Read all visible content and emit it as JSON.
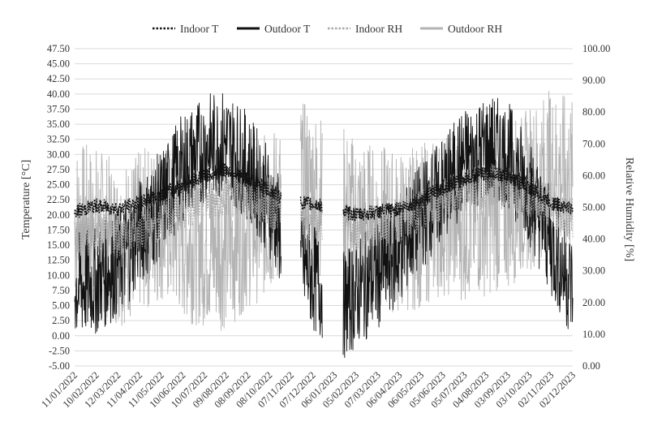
{
  "chart_data": {
    "type": "line",
    "title": "",
    "xlabel": "",
    "ylabel": "Temperature [°C]",
    "y2label": "Relative Humidity [%]",
    "ylim": [
      -5,
      47.5
    ],
    "y2lim": [
      0,
      100
    ],
    "xlim": [
      "2022-01-11",
      "2023-12-02"
    ],
    "grid": "horizontal",
    "legend": "top-center",
    "x_tick_labels": [
      "11/01/2022",
      "10/02/2022",
      "12/03/2022",
      "11/04/2022",
      "11/05/2022",
      "10/06/2022",
      "10/07/2022",
      "09/08/2022",
      "08/09/2022",
      "08/10/2022",
      "07/11/2022",
      "07/12/2022",
      "06/01/2023",
      "05/02/2023",
      "07/03/2023",
      "06/04/2023",
      "06/05/2023",
      "05/06/2023",
      "05/07/2023",
      "04/08/2023",
      "03/09/2023",
      "03/10/2023",
      "02/11/2023",
      "02/12/2023"
    ],
    "y_tick_labels": [
      "-5.00",
      "-2.50",
      "0.00",
      "2.50",
      "5.00",
      "7.50",
      "10.00",
      "12.50",
      "15.00",
      "17.50",
      "20.00",
      "22.50",
      "25.00",
      "27.50",
      "30.00",
      "32.50",
      "35.00",
      "37.50",
      "40.00",
      "42.50",
      "45.00",
      "47.50"
    ],
    "y2_tick_labels": [
      "0.00",
      "10.00",
      "20.00",
      "30.00",
      "40.00",
      "50.00",
      "60.00",
      "70.00",
      "80.00",
      "90.00",
      "100.00"
    ],
    "gaps": [
      [
        "2022-10-24",
        "2022-11-20"
      ],
      [
        "2022-12-20",
        "2023-01-18"
      ]
    ],
    "series": [
      {
        "name": "Indoor T",
        "axis": "left",
        "color": "#111111",
        "dash": "dotted",
        "x": [
          "2022-01-11",
          "2022-02-10",
          "2022-03-12",
          "2022-04-11",
          "2022-05-11",
          "2022-06-10",
          "2022-07-10",
          "2022-08-09",
          "2022-09-08",
          "2022-10-08",
          "2022-10-23",
          "2022-11-21",
          "2022-12-19",
          "2023-01-19",
          "2023-02-05",
          "2023-03-07",
          "2023-04-06",
          "2023-05-06",
          "2023-06-05",
          "2023-07-05",
          "2023-08-04",
          "2023-09-03",
          "2023-10-03",
          "2023-11-02",
          "2023-12-02"
        ],
        "values": [
          20.5,
          21.5,
          21.0,
          22.0,
          23.5,
          25.0,
          26.5,
          27.5,
          26.0,
          24.0,
          23.0,
          22.0,
          21.5,
          20.5,
          20.0,
          20.5,
          21.0,
          22.5,
          24.5,
          26.0,
          27.0,
          26.5,
          24.5,
          22.0,
          21.0
        ]
      },
      {
        "name": "Outdoor T",
        "axis": "left",
        "color": "#111111",
        "dash": "solid",
        "x": [
          "2022-01-11",
          "2022-02-10",
          "2022-03-12",
          "2022-04-11",
          "2022-05-11",
          "2022-06-10",
          "2022-07-10",
          "2022-08-09",
          "2022-09-08",
          "2022-10-08",
          "2022-10-23",
          "2022-11-21",
          "2022-12-19",
          "2023-01-19",
          "2023-02-05",
          "2023-03-07",
          "2023-04-06",
          "2023-05-06",
          "2023-06-05",
          "2023-07-05",
          "2023-08-04",
          "2023-09-03",
          "2023-10-03",
          "2023-11-02",
          "2023-12-02"
        ],
        "values": [
          8.0,
          9.0,
          12.0,
          17.0,
          22.0,
          28.0,
          31.0,
          32.0,
          28.0,
          22.0,
          17.0,
          12.0,
          8.0,
          5.0,
          7.0,
          10.0,
          14.0,
          20.0,
          24.0,
          29.0,
          31.0,
          30.0,
          24.0,
          15.0,
          8.0
        ]
      },
      {
        "name": "Indoor RH",
        "axis": "right",
        "color": "#a6a6a6",
        "dash": "dotted",
        "x": [
          "2022-01-11",
          "2022-02-10",
          "2022-03-12",
          "2022-04-11",
          "2022-05-11",
          "2022-06-10",
          "2022-07-10",
          "2022-08-09",
          "2022-09-08",
          "2022-10-08",
          "2022-10-23",
          "2022-11-21",
          "2022-12-19",
          "2023-01-19",
          "2023-02-05",
          "2023-03-07",
          "2023-04-06",
          "2023-05-06",
          "2023-06-05",
          "2023-07-05",
          "2023-08-04",
          "2023-09-03",
          "2023-10-03",
          "2023-11-02",
          "2023-12-02"
        ],
        "values": [
          40,
          42,
          41,
          43,
          46,
          50,
          52,
          54,
          53,
          50,
          49,
          47,
          46,
          44,
          43,
          44,
          46,
          49,
          52,
          55,
          57,
          56,
          54,
          50,
          47
        ]
      },
      {
        "name": "Outdoor RH",
        "axis": "right",
        "color": "#b3b3b3",
        "dash": "solid",
        "x": [
          "2022-01-11",
          "2022-02-10",
          "2022-03-12",
          "2022-04-11",
          "2022-05-11",
          "2022-06-10",
          "2022-07-10",
          "2022-08-09",
          "2022-09-08",
          "2022-10-08",
          "2022-10-23",
          "2022-11-21",
          "2022-12-19",
          "2023-01-19",
          "2023-02-05",
          "2023-03-07",
          "2023-04-06",
          "2023-05-06",
          "2023-06-05",
          "2023-07-05",
          "2023-08-04",
          "2023-09-03",
          "2023-10-03",
          "2023-11-02",
          "2023-12-02"
        ],
        "values": [
          45,
          44,
          38,
          42,
          46,
          40,
          38,
          37,
          44,
          48,
          52,
          58,
          54,
          50,
          46,
          44,
          42,
          44,
          48,
          46,
          48,
          50,
          56,
          62,
          58
        ]
      }
    ]
  }
}
